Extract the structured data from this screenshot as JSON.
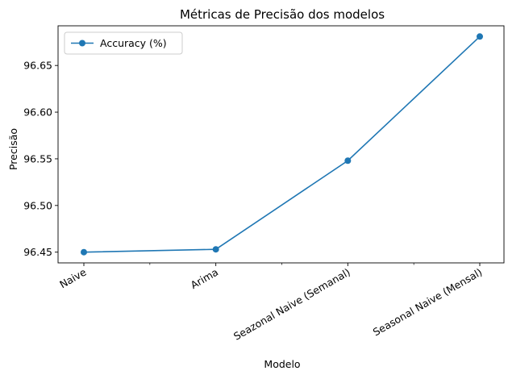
{
  "chart_data": {
    "type": "line",
    "title": "Métricas de Precisão dos modelos",
    "xlabel": "Modelo",
    "ylabel": "Precisão",
    "categories": [
      "Naive",
      "Arima",
      "Seazonal Naive (Semanal)",
      "Seasonal Naive (Mensal)"
    ],
    "series": [
      {
        "name": "Accuracy (%)",
        "values": [
          96.45,
          96.453,
          96.548,
          96.681
        ],
        "color": "#1f77b4",
        "marker": "circle"
      }
    ],
    "yticks": [
      "96.45",
      "96.50",
      "96.55",
      "96.60",
      "96.65"
    ],
    "ylim": [
      96.4385,
      96.6925
    ],
    "legend_position": "top-left",
    "grid": false,
    "minor_x_ticks": true
  }
}
